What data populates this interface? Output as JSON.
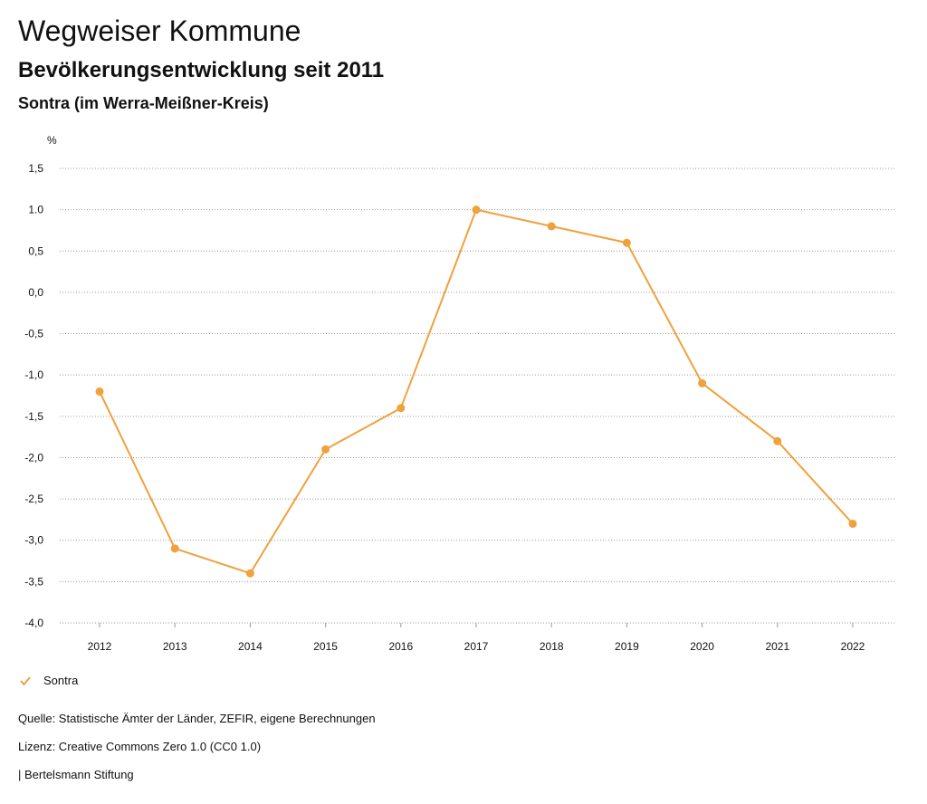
{
  "header": {
    "title": "Wegweiser Kommune",
    "subtitle": "Bevölkerungsentwicklung seit 2011",
    "region": "Sontra (im Werra-Meißner-Kreis)"
  },
  "chart_data": {
    "type": "line",
    "title": "Bevölkerungsentwicklung seit 2011",
    "xlabel": "",
    "ylabel": "%",
    "categories": [
      "2012",
      "2013",
      "2014",
      "2015",
      "2016",
      "2017",
      "2018",
      "2019",
      "2020",
      "2021",
      "2022"
    ],
    "series": [
      {
        "name": "Sontra",
        "color": "#f0a13c",
        "values": [
          -1.2,
          -3.1,
          -3.4,
          -1.9,
          -1.4,
          1.0,
          0.8,
          0.6,
          -1.1,
          -1.8,
          -2.8
        ]
      }
    ],
    "ylim": [
      -4.0,
      1.5
    ],
    "yticks": [
      1.5,
      1.0,
      0.5,
      0.0,
      -0.5,
      -1.0,
      -1.5,
      -2.0,
      -2.5,
      -3.0,
      -3.5,
      -4.0
    ],
    "ytick_labels": [
      "1,5",
      "1.0",
      "0,5",
      "0,0",
      "-0,5",
      "-1,0",
      "-1,5",
      "-2,0",
      "-2,5",
      "-3,0",
      "-3,5",
      "-4,0"
    ],
    "grid": true,
    "legend_position": "bottom-left"
  },
  "legend": {
    "label": "Sontra"
  },
  "footer": {
    "source": "Quelle: Statistische Ämter der Länder, ZEFIR, eigene Berechnungen",
    "license": "Lizenz: Creative Commons Zero 1.0 (CC0 1.0)",
    "publisher": "| Bertelsmann Stiftung"
  }
}
